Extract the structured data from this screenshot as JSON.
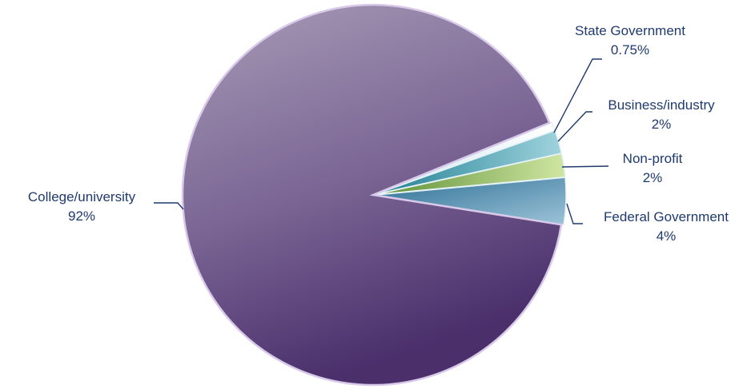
{
  "chart_data": {
    "type": "pie",
    "title": "",
    "legend": "none",
    "slices": [
      {
        "label": "Federal Government",
        "value_label": "4%",
        "value": 4,
        "color": "#3d7fa3"
      },
      {
        "label": "Non-profit",
        "value_label": "2%",
        "value": 2,
        "color": "#7fb04a"
      },
      {
        "label": "Business/industry",
        "value_label": "2%",
        "value": 2,
        "color": "#2e93a6"
      },
      {
        "label": "State Government",
        "value_label": "0.75%",
        "value": 0.75,
        "color": "#b9dbe6"
      },
      {
        "label": "College/university",
        "value_label": "92%",
        "value": 92,
        "color": "#6f5a8a"
      }
    ]
  }
}
